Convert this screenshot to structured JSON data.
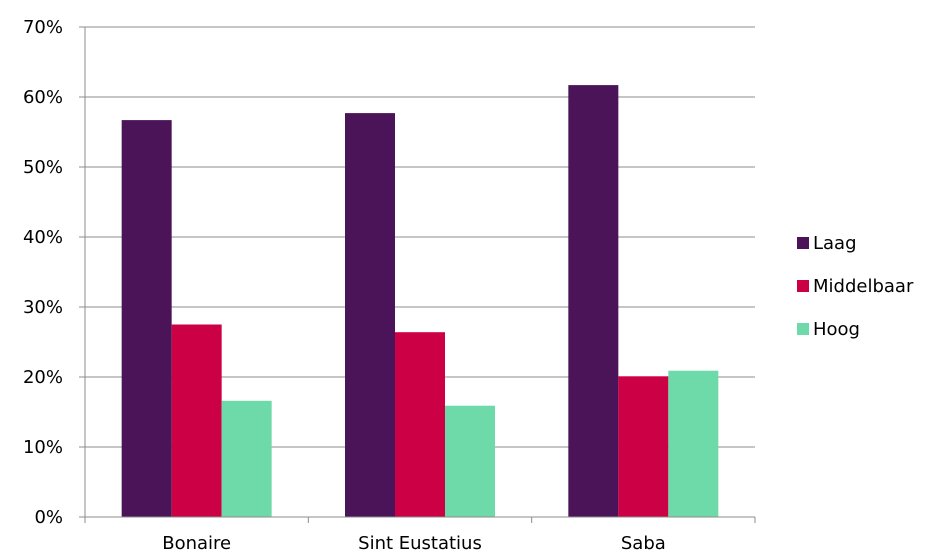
{
  "chart_data": {
    "type": "bar",
    "title": "",
    "xlabel": "",
    "ylabel": "",
    "categories": [
      "Bonaire",
      "Sint Eustatius",
      "Saba"
    ],
    "series": [
      {
        "name": "Laag",
        "values": [
          56.7,
          57.7,
          61.7
        ],
        "color": "#4b1459"
      },
      {
        "name": "Middelbaar",
        "values": [
          27.5,
          26.4,
          20.1
        ],
        "color": "#cc0044"
      },
      {
        "name": "Hoog",
        "values": [
          16.6,
          15.9,
          20.9
        ],
        "color": "#6fdaa9"
      }
    ],
    "ylim": [
      0,
      70
    ],
    "yticks": [
      0,
      10,
      20,
      30,
      40,
      50,
      60,
      70
    ],
    "ytick_labels": [
      "0%",
      "10%",
      "20%",
      "30%",
      "40%",
      "50%",
      "60%",
      "70%"
    ],
    "grid": true,
    "legend_position": "right"
  }
}
